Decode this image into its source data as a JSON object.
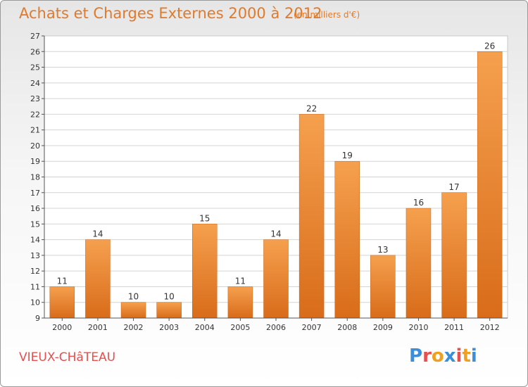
{
  "header": {
    "title": "Achats et Charges Externes 2000 à 2012",
    "subtitle": "(en milliers d'€)"
  },
  "footer": {
    "commune": "VIEUX-CHâTEAU",
    "logo_text": "Proxiti"
  },
  "colors": {
    "bar_light": "#f5a04e",
    "bar_dark": "#d86c1a",
    "title": "#e07a2a",
    "commune": "#e84e4e",
    "logo_letters": [
      "#3a8fd8",
      "#e84e4e",
      "#f0a020",
      "#3a8fd8",
      "#e84e4e",
      "#f0a020",
      "#3a8fd8"
    ]
  },
  "chart_data": {
    "type": "bar",
    "title": "Achats et Charges Externes 2000 à 2012",
    "subtitle": "(en milliers d'€)",
    "categories": [
      "2000",
      "2001",
      "2002",
      "2003",
      "2004",
      "2005",
      "2006",
      "2007",
      "2008",
      "2009",
      "2010",
      "2011",
      "2012"
    ],
    "values": [
      11,
      14,
      10,
      10,
      15,
      11,
      14,
      22,
      19,
      13,
      16,
      17,
      26
    ],
    "data_labels": [
      "11",
      "14",
      "10",
      "10",
      "15",
      "11",
      "14",
      "22",
      "19",
      "13",
      "16",
      "17",
      "26"
    ],
    "ylim": [
      9,
      27
    ],
    "yticks": [
      "9",
      "10",
      "11",
      "12",
      "13",
      "14",
      "15",
      "16",
      "17",
      "18",
      "19",
      "20",
      "21",
      "22",
      "23",
      "24",
      "25",
      "26",
      "27"
    ],
    "grid": true,
    "legend": "none"
  }
}
